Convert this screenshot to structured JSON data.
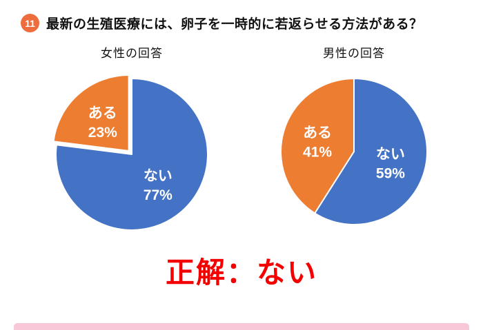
{
  "header": {
    "number": "11",
    "question": "最新の生殖医療には、卵子を一時的に若返らせる方法がある？"
  },
  "answer": {
    "label": "正解：ない"
  },
  "colors": {
    "badge": "#ed6d3d",
    "answer": "#f50000",
    "bar": "#f8c8d8",
    "pie-label": "#ffffff"
  },
  "chart_data": [
    {
      "type": "pie",
      "title": "女性の回答",
      "labels": [
        "ない",
        "ある"
      ],
      "labels_en": [
        "nai",
        "aru"
      ],
      "values": [
        77,
        23
      ],
      "colors": [
        "#4472C4",
        "#ED7D31"
      ],
      "start_angle": 0,
      "direction": "clockwise",
      "explode": [
        0,
        0.06
      ],
      "radius": 110,
      "label_radius": 0.52,
      "legend": "none",
      "data_label_format": "label + percent"
    },
    {
      "type": "pie",
      "title": "男性の回答",
      "labels": [
        "ない",
        "ある"
      ],
      "labels_en": [
        "nai",
        "aru"
      ],
      "values": [
        59,
        41
      ],
      "colors": [
        "#4472C4",
        "#ED7D31"
      ],
      "start_angle": 0,
      "direction": "clockwise",
      "explode": [
        0,
        0
      ],
      "radius": 106,
      "label_radius": 0.52,
      "legend": "none",
      "data_label_format": "label + percent"
    }
  ]
}
